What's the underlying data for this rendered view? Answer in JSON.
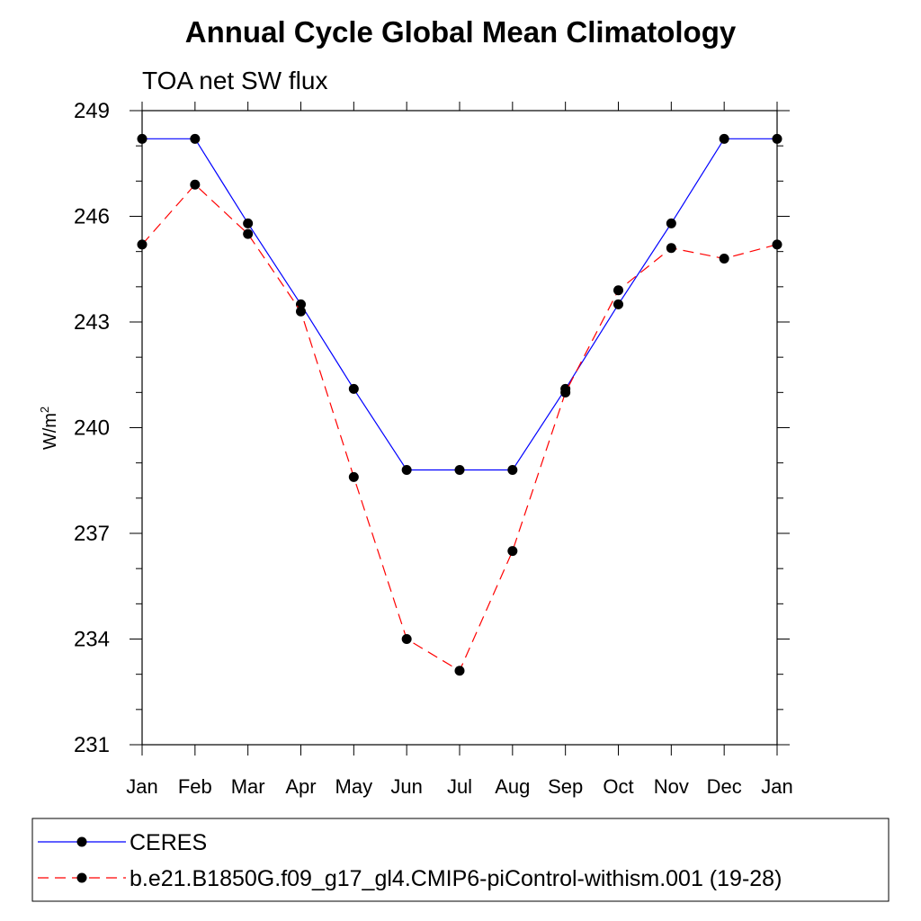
{
  "chart_data": {
    "type": "line",
    "title": "Annual Cycle Global Mean Climatology",
    "subtitle": "TOA net SW flux",
    "ylabel_base": "W/m",
    "ylabel_sup": "2",
    "categories": [
      "Jan",
      "Feb",
      "Mar",
      "Apr",
      "May",
      "Jun",
      "Jul",
      "Aug",
      "Sep",
      "Oct",
      "Nov",
      "Dec",
      "Jan"
    ],
    "ylim": [
      231,
      249
    ],
    "yticks": [
      "231",
      "234",
      "237",
      "240",
      "243",
      "246",
      "249"
    ],
    "grid": false,
    "legend_position": "bottom",
    "series": [
      {
        "name": "CERES",
        "color": "#0000ff",
        "style": "solid",
        "values": [
          248.2,
          248.2,
          245.8,
          243.5,
          241.1,
          238.8,
          238.8,
          238.8,
          241.1,
          243.5,
          245.8,
          248.2,
          248.2
        ]
      },
      {
        "name": "b.e21.B1850G.f09_g17_gl4.CMIP6-piControl-withism.001 (19-28)",
        "color": "#ff0000",
        "style": "dashed",
        "values": [
          245.2,
          246.9,
          245.5,
          243.3,
          238.6,
          234.0,
          233.1,
          236.5,
          241.0,
          243.9,
          245.1,
          244.8,
          245.2
        ]
      }
    ]
  }
}
